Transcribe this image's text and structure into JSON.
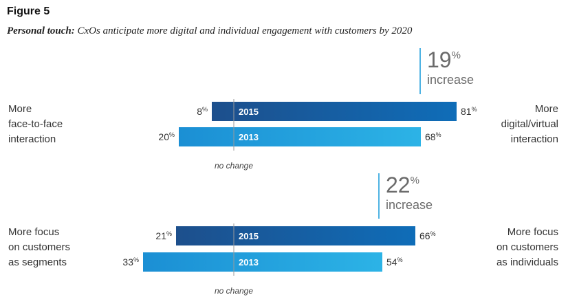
{
  "figure_label": "Figure 5",
  "subtitle_bold": "Personal touch:",
  "subtitle_rest": " CxOs anticipate more digital and individual engagement with customers by 2020",
  "chart_data": [
    {
      "type": "bar",
      "orientation": "diverging-horizontal",
      "left_label": [
        "More",
        "face-to-face",
        "interaction"
      ],
      "right_label": [
        "More",
        "digital/virtual",
        "interaction"
      ],
      "center_label": "no change",
      "callout": {
        "value": "19",
        "unit": "%",
        "text": "increase"
      },
      "series": [
        {
          "name": "2015",
          "left": 8,
          "right": 81,
          "left_label": "8",
          "right_label": "81",
          "color": "#1a4f8d"
        },
        {
          "name": "2013",
          "left": 20,
          "right": 68,
          "left_label": "20",
          "right_label": "68",
          "color": "#1fa3de"
        }
      ]
    },
    {
      "type": "bar",
      "orientation": "diverging-horizontal",
      "left_label": [
        "More focus",
        "on customers",
        "as segments"
      ],
      "right_label": [
        "More focus",
        "on customers",
        "as individuals"
      ],
      "center_label": "no change",
      "callout": {
        "value": "22",
        "unit": "%",
        "text": "increase"
      },
      "series": [
        {
          "name": "2015",
          "left": 21,
          "right": 66,
          "left_label": "21",
          "right_label": "66",
          "color": "#1a4f8d"
        },
        {
          "name": "2013",
          "left": 33,
          "right": 54,
          "left_label": "33",
          "right_label": "54",
          "color": "#1fa3de"
        }
      ]
    }
  ],
  "colors": {
    "callout_line": "#4fb3e3",
    "center_line": "#9a9a9a"
  }
}
